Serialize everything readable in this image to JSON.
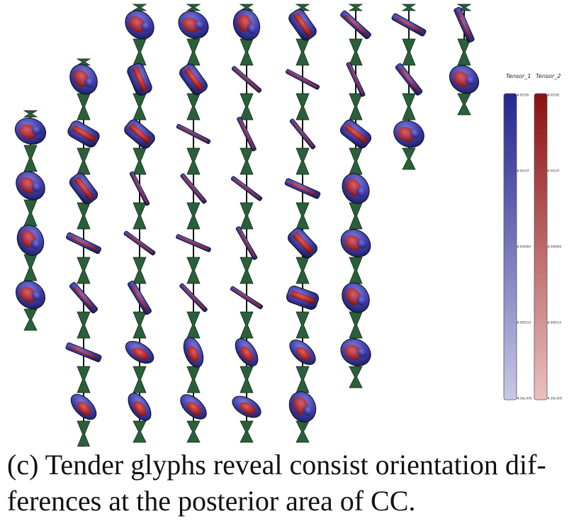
{
  "caption_lines": [
    "(c) Tender glyphs reveal consist orientation dif-",
    "ferences at the posterior area of CC."
  ],
  "legend": {
    "series": [
      {
        "title": "Tensor_1",
        "color_top": "#25258f",
        "color_bottom": "#c8c8e8",
        "ticks": [
          "0.00185",
          "0.00147",
          "0.000994",
          "0.000514",
          "4.39e-005"
        ]
      },
      {
        "title": "Tensor_2",
        "color_top": "#8c1010",
        "color_bottom": "#ecc0c0",
        "ticks": [
          "0.00185",
          "0.00147",
          "0.000994",
          "0.000514",
          "4.39e-005"
        ]
      }
    ]
  },
  "colors": {
    "connector": "#2a5f3a",
    "tensor_1": "#3b3ba8",
    "tensor_2": "#a82828"
  },
  "columns": [
    {
      "glyphs": [
        "blob",
        "blob",
        "blob",
        "blob"
      ]
    },
    {
      "glyphs": [
        "blob",
        "cyl",
        "cyl",
        "flat",
        "flat",
        "flat",
        "disc",
        "blob"
      ]
    },
    {
      "glyphs": [
        "blob",
        "cyl",
        "cyl",
        "thin",
        "thin",
        "flat",
        "disc",
        "disc"
      ]
    },
    {
      "glyphs": [
        "blob",
        "cyl",
        "thin",
        "thin",
        "thin",
        "thin",
        "disc",
        "disc"
      ]
    },
    {
      "glyphs": [
        "blob",
        "thin",
        "thin",
        "thin",
        "thin",
        "thin",
        "disc",
        "disc"
      ]
    },
    {
      "glyphs": [
        "cyl",
        "thin",
        "thin",
        "flat",
        "cyl",
        "cyl",
        "disc",
        "blob"
      ]
    },
    {
      "glyphs": [
        "flat",
        "thin",
        "cyl",
        "blob",
        "blob",
        "blob",
        "blob"
      ]
    },
    {
      "glyphs": [
        "flat",
        "flat",
        "blob"
      ]
    },
    {
      "glyphs": [
        "flat",
        "blob"
      ]
    }
  ]
}
